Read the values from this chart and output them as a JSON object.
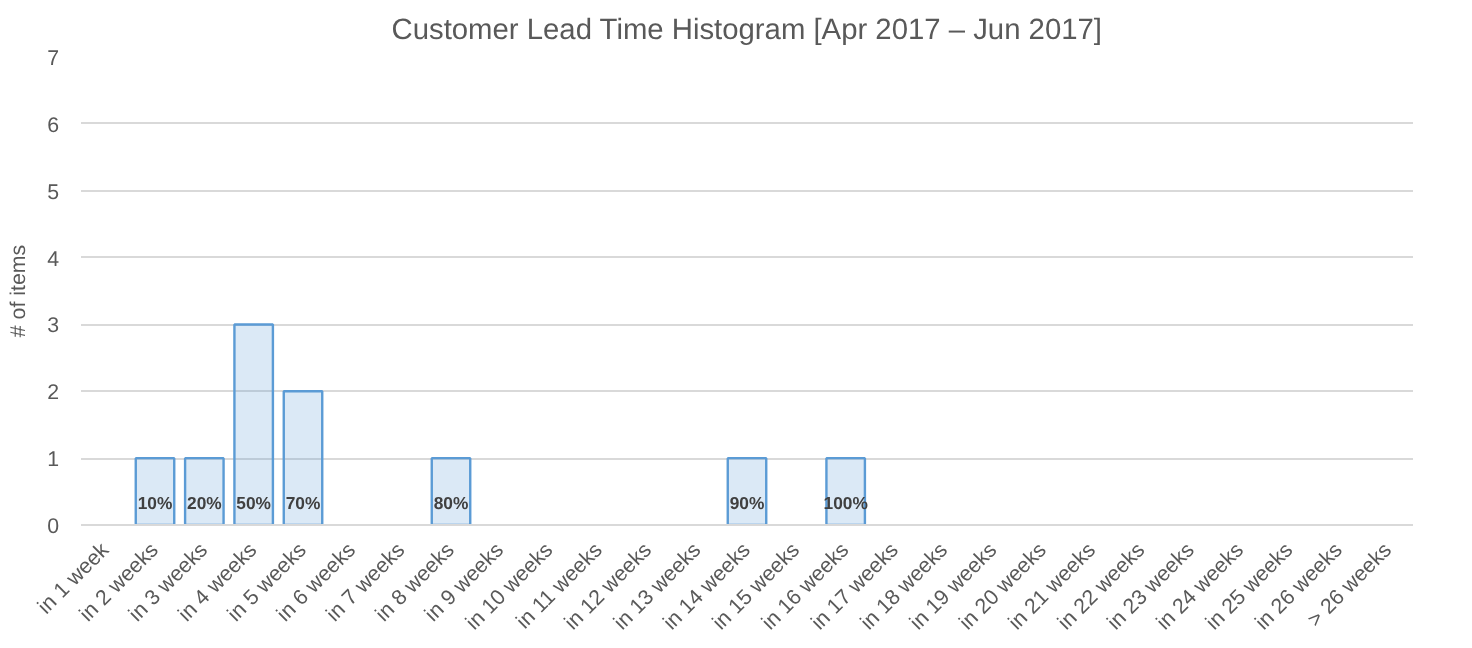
{
  "chart_data": {
    "type": "bar",
    "title": "Customer Lead Time Histogram [Apr 2017 – Jun 2017]",
    "ylabel": "# of items",
    "categories": [
      "in 1 week",
      "in 2 weeks",
      "in 3 weeks",
      "in 4 weeks",
      "in 5 weeks",
      "in 6 weeks",
      "in 7 weeks",
      "in 8 weeks",
      "in 9 weeks",
      "in 10 weeks",
      "in 11 weeks",
      "in 12 weeks",
      "in 13 weeks",
      "in 14 weeks",
      "in 15 weeks",
      "in 16 weeks",
      "in 17 weeks",
      "in 18 weeks",
      "in 19 weeks",
      "in 20 weeks",
      "in 21 weeks",
      "in 22 weeks",
      "in 23 weeks",
      "in 24 weeks",
      "in 25 weeks",
      "in 26 weeks",
      "> 26 weeks"
    ],
    "values": [
      0,
      1,
      1,
      3,
      2,
      0,
      0,
      1,
      0,
      0,
      0,
      0,
      0,
      1,
      0,
      1,
      0,
      0,
      0,
      0,
      0,
      0,
      0,
      0,
      0,
      0,
      0
    ],
    "annotations": [
      {
        "text": "10%",
        "x": "in 2 weeks",
        "y": 0
      },
      {
        "text": "20%",
        "x": "in 3 weeks",
        "y": 0
      },
      {
        "text": "50%",
        "x": "in 4 weeks",
        "y": 0
      },
      {
        "text": "70%",
        "x": "in 5 weeks",
        "y": 0
      },
      {
        "text": "80%",
        "x": "in 8 weeks",
        "y": 0
      },
      {
        "text": "90%",
        "x": "in 14 weeks",
        "y": 0
      },
      {
        "text": "100%",
        "x": "in 16 weeks",
        "y": 0
      }
    ],
    "color": "#5b9bd5",
    "ylim": [
      0,
      7
    ],
    "yticks": [
      0,
      1,
      2,
      3,
      4,
      5,
      6,
      7
    ],
    "grid": "y"
  }
}
